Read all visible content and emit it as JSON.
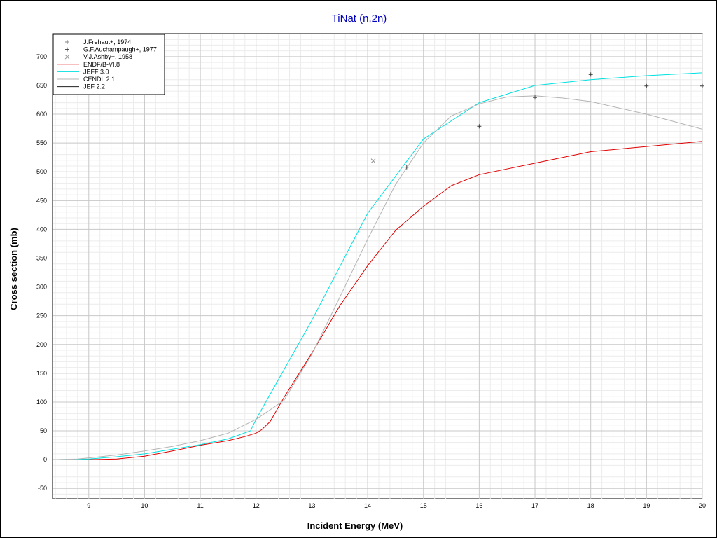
{
  "chart_data": {
    "type": "line",
    "title": "TiNat (n,2n)",
    "xlabel": "Incident Energy (MeV)",
    "ylabel": "Cross section (mb)",
    "xlim": [
      8.35,
      20
    ],
    "ylim": [
      -68,
      740
    ],
    "x_ticks": [
      9,
      10,
      11,
      12,
      13,
      14,
      15,
      16,
      17,
      18,
      19,
      20
    ],
    "y_ticks": [
      -50,
      0,
      50,
      100,
      150,
      200,
      250,
      300,
      350,
      400,
      450,
      500,
      550,
      600,
      650,
      700
    ],
    "grid": true,
    "legend_position": "top-left",
    "series": [
      {
        "name": "J.Frehaut+, 1974",
        "kind": "scatter",
        "marker": "plus",
        "color": "#808080",
        "points": []
      },
      {
        "name": "G.F.Auchampaugh+, 1977",
        "kind": "scatter",
        "marker": "plus",
        "color": "#404040",
        "points": [
          [
            14.7,
            508
          ],
          [
            16.0,
            579
          ],
          [
            17.0,
            629
          ],
          [
            18.0,
            669
          ],
          [
            19.0,
            649
          ],
          [
            20.0,
            649
          ]
        ]
      },
      {
        "name": "V.J.Ashby+, 1958",
        "kind": "scatter",
        "marker": "cross",
        "color": "#909090",
        "points": [
          [
            14.1,
            519
          ]
        ]
      },
      {
        "name": "ENDF/B-VI.8",
        "kind": "line",
        "color": "#e00000",
        "points": [
          [
            8.35,
            0
          ],
          [
            9.0,
            0
          ],
          [
            9.5,
            1
          ],
          [
            10.0,
            6
          ],
          [
            10.5,
            15
          ],
          [
            11.0,
            25
          ],
          [
            11.5,
            33
          ],
          [
            11.8,
            40
          ],
          [
            12.0,
            46
          ],
          [
            12.1,
            52
          ],
          [
            12.25,
            66
          ],
          [
            12.5,
            108
          ],
          [
            13.0,
            185
          ],
          [
            13.5,
            267
          ],
          [
            14.0,
            337
          ],
          [
            14.5,
            398
          ],
          [
            15.0,
            440
          ],
          [
            15.5,
            476
          ],
          [
            16.0,
            495
          ],
          [
            17.0,
            515
          ],
          [
            18.0,
            535
          ],
          [
            19.0,
            544
          ],
          [
            20.0,
            553
          ]
        ]
      },
      {
        "name": "JEFF 3.0",
        "kind": "line",
        "color": "#00e0e0",
        "points": [
          [
            8.35,
            0
          ],
          [
            9.0,
            1
          ],
          [
            9.5,
            5
          ],
          [
            10.0,
            10
          ],
          [
            10.5,
            18
          ],
          [
            11.0,
            26
          ],
          [
            11.5,
            36
          ],
          [
            11.9,
            50
          ],
          [
            12.0,
            70
          ],
          [
            13.0,
            242
          ],
          [
            14.0,
            428
          ],
          [
            15.0,
            557
          ],
          [
            16.0,
            620
          ],
          [
            17.0,
            650
          ],
          [
            18.0,
            660
          ],
          [
            19.0,
            667
          ],
          [
            20.0,
            672
          ]
        ]
      },
      {
        "name": "CENDL 2.1",
        "kind": "line",
        "color": "#b4b4b4",
        "points": [
          [
            8.35,
            0
          ],
          [
            8.8,
            1
          ],
          [
            9.5,
            8
          ],
          [
            10.0,
            15
          ],
          [
            10.5,
            23
          ],
          [
            11.0,
            33
          ],
          [
            11.5,
            46
          ],
          [
            12.0,
            70
          ],
          [
            12.5,
            103
          ],
          [
            13.0,
            183
          ],
          [
            13.5,
            282
          ],
          [
            14.0,
            383
          ],
          [
            14.5,
            478
          ],
          [
            15.0,
            550
          ],
          [
            15.5,
            597
          ],
          [
            16.0,
            618
          ],
          [
            16.5,
            630
          ],
          [
            17.0,
            632
          ],
          [
            17.5,
            628
          ],
          [
            18.0,
            622
          ],
          [
            19.0,
            600
          ],
          [
            20.0,
            574
          ]
        ]
      },
      {
        "name": "JEF 2.2",
        "kind": "line",
        "color": "#202020",
        "points": []
      }
    ]
  }
}
